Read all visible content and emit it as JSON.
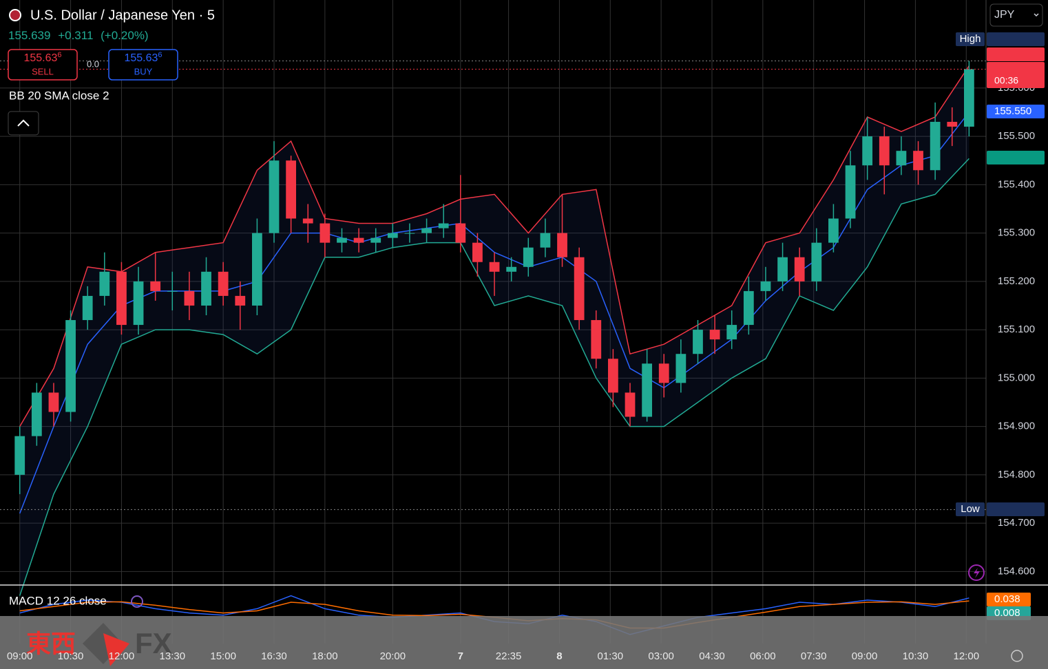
{
  "header": {
    "title": "U.S. Dollar / Japanese Yen · 5",
    "quote": "155.639",
    "change": "+0.311",
    "change_pct": "(+0.20%)",
    "sell_price": "155.63",
    "sell_sup": "6",
    "sell_label": "SELL",
    "spread": "0.0",
    "buy_price": "155.63",
    "buy_sup": "6",
    "buy_label": "BUY",
    "indicator": "BB 20 SMA close 2",
    "currency": "JPY",
    "watermark": [
      "東西",
      "FX"
    ]
  },
  "chart_data": {
    "type": "candlestick",
    "up_color": "#22ab94",
    "down_color": "#f23645",
    "grid": true,
    "x": [
      0,
      6,
      12,
      18,
      24,
      30,
      36,
      42,
      48,
      54,
      60,
      66,
      72,
      78,
      84,
      90,
      96,
      102,
      108,
      114,
      120,
      126,
      132,
      138,
      144,
      150,
      156,
      162,
      168,
      174,
      180,
      186,
      192,
      198,
      204,
      210,
      216,
      222,
      228,
      234,
      240,
      246,
      252,
      258,
      264,
      270,
      276,
      282,
      288,
      294,
      300,
      306,
      312,
      318,
      324,
      330,
      336
    ],
    "open": [
      154.8,
      154.88,
      154.97,
      154.93,
      155.12,
      155.17,
      155.22,
      155.11,
      155.2,
      155.18,
      155.18,
      155.15,
      155.22,
      155.17,
      155.15,
      155.3,
      155.45,
      155.33,
      155.32,
      155.28,
      155.29,
      155.28,
      155.29,
      155.3,
      155.3,
      155.31,
      155.32,
      155.28,
      155.24,
      155.22,
      155.23,
      155.27,
      155.3,
      155.25,
      155.12,
      155.04,
      154.97,
      154.92,
      155.03,
      154.99,
      155.05,
      155.1,
      155.08,
      155.11,
      155.18,
      155.2,
      155.25,
      155.2,
      155.28,
      155.33,
      155.44,
      155.5,
      155.44,
      155.47,
      155.43,
      155.53,
      155.52
    ],
    "high": [
      154.9,
      154.99,
      154.99,
      155.14,
      155.19,
      155.26,
      155.24,
      155.23,
      155.26,
      155.22,
      155.22,
      155.25,
      155.24,
      155.2,
      155.33,
      155.49,
      155.46,
      155.36,
      155.34,
      155.31,
      155.31,
      155.31,
      155.32,
      155.32,
      155.33,
      155.36,
      155.42,
      155.3,
      155.26,
      155.25,
      155.29,
      155.33,
      155.38,
      155.27,
      155.14,
      155.06,
      154.99,
      155.06,
      155.05,
      155.08,
      155.12,
      155.13,
      155.14,
      155.21,
      155.23,
      155.28,
      155.27,
      155.31,
      155.36,
      155.47,
      155.54,
      155.52,
      155.5,
      155.49,
      155.57,
      155.56,
      155.656
    ],
    "low": [
      154.76,
      154.86,
      154.9,
      154.91,
      155.1,
      155.15,
      155.09,
      155.09,
      155.16,
      155.14,
      155.12,
      155.13,
      155.15,
      155.1,
      155.13,
      155.28,
      155.3,
      155.28,
      155.25,
      155.26,
      155.26,
      155.26,
      155.27,
      155.28,
      155.28,
      155.29,
      155.26,
      155.21,
      155.17,
      155.2,
      155.21,
      155.25,
      155.23,
      155.1,
      155.02,
      154.94,
      154.9,
      154.91,
      154.96,
      154.97,
      155.03,
      155.05,
      155.06,
      155.09,
      155.16,
      155.18,
      155.17,
      155.18,
      155.26,
      155.31,
      155.41,
      155.38,
      155.42,
      155.4,
      155.41,
      155.48,
      155.5
    ],
    "close": [
      154.88,
      154.97,
      154.93,
      155.12,
      155.17,
      155.22,
      155.11,
      155.2,
      155.18,
      155.18,
      155.15,
      155.22,
      155.17,
      155.15,
      155.3,
      155.45,
      155.33,
      155.32,
      155.28,
      155.29,
      155.28,
      155.29,
      155.3,
      155.3,
      155.31,
      155.32,
      155.28,
      155.24,
      155.22,
      155.23,
      155.27,
      155.3,
      155.25,
      155.12,
      155.04,
      154.97,
      154.92,
      155.03,
      154.99,
      155.05,
      155.1,
      155.08,
      155.11,
      155.18,
      155.2,
      155.25,
      155.2,
      155.28,
      155.33,
      155.44,
      155.5,
      155.44,
      155.47,
      155.43,
      155.53,
      155.52,
      155.639
    ],
    "xlim": [
      -7,
      342
    ],
    "xticks": [
      {
        "value": 0,
        "label": "09:00"
      },
      {
        "value": 18,
        "label": "10:30"
      },
      {
        "value": 36,
        "label": "12:00"
      },
      {
        "value": 54,
        "label": "13:30"
      },
      {
        "value": 72,
        "label": "15:00"
      },
      {
        "value": 90,
        "label": "16:30"
      },
      {
        "value": 108,
        "label": "18:00"
      },
      {
        "value": 132,
        "label": "20:00"
      },
      {
        "value": 156,
        "label": "7"
      },
      {
        "value": 173,
        "label": "22:35"
      },
      {
        "value": 191,
        "label": "8"
      },
      {
        "value": 209,
        "label": "01:30"
      },
      {
        "value": 227,
        "label": "03:00"
      },
      {
        "value": 245,
        "label": "04:30"
      },
      {
        "value": 263,
        "label": "06:00"
      },
      {
        "value": 281,
        "label": "07:30"
      },
      {
        "value": 299,
        "label": "09:00"
      },
      {
        "value": 317,
        "label": "10:30"
      },
      {
        "value": 335,
        "label": "12:00"
      }
    ],
    "ylim": [
      154.572,
      155.782
    ],
    "yticks": [
      {
        "value": 154.6,
        "label": "154.600"
      },
      {
        "value": 154.7,
        "label": "154.700"
      },
      {
        "value": 154.8,
        "label": "154.800"
      },
      {
        "value": 154.9,
        "label": "154.900"
      },
      {
        "value": 155.0,
        "label": "155.000"
      },
      {
        "value": 155.1,
        "label": "155.100"
      },
      {
        "value": 155.2,
        "label": "155.200"
      },
      {
        "value": 155.3,
        "label": "155.300"
      },
      {
        "value": 155.4,
        "label": "155.400"
      },
      {
        "value": 155.5,
        "label": "155.500"
      },
      {
        "value": 155.6,
        "label": "155.600"
      }
    ],
    "bands": {
      "x": [
        0,
        12,
        24,
        36,
        48,
        60,
        72,
        84,
        96,
        108,
        120,
        132,
        144,
        156,
        168,
        180,
        192,
        204,
        216,
        228,
        240,
        252,
        264,
        276,
        288,
        300,
        312,
        324,
        336
      ],
      "upper": [
        154.9,
        155.02,
        155.23,
        155.22,
        155.26,
        155.27,
        155.28,
        155.43,
        155.49,
        155.33,
        155.32,
        155.32,
        155.34,
        155.37,
        155.38,
        155.3,
        155.38,
        155.39,
        155.05,
        155.07,
        155.11,
        155.15,
        155.28,
        155.3,
        155.41,
        155.54,
        155.51,
        155.54,
        155.646
      ],
      "middle": [
        154.72,
        154.9,
        155.07,
        155.15,
        155.18,
        155.18,
        155.18,
        155.2,
        155.3,
        155.3,
        155.28,
        155.3,
        155.31,
        155.32,
        155.26,
        155.23,
        155.25,
        155.2,
        155.02,
        154.98,
        155.03,
        155.08,
        155.16,
        155.22,
        155.27,
        155.39,
        155.44,
        155.46,
        155.55
      ],
      "lower": [
        154.55,
        154.76,
        154.9,
        155.07,
        155.1,
        155.1,
        155.09,
        155.05,
        155.1,
        155.25,
        155.25,
        155.27,
        155.28,
        155.28,
        155.15,
        155.17,
        155.15,
        155.0,
        154.9,
        154.9,
        154.95,
        155.0,
        155.04,
        155.17,
        155.14,
        155.23,
        155.36,
        155.38,
        155.454
      ],
      "upper_color": "#f23645",
      "middle_color": "#2962ff",
      "lower_color": "#22ab94"
    },
    "price_tags": [
      {
        "value": 155.656,
        "name": "High",
        "color": "#1c2f5a"
      },
      {
        "value": 155.646,
        "color": "#f23645"
      },
      {
        "value": 155.639,
        "color": "#f23645",
        "countdown": "00:36"
      },
      {
        "value": 155.55,
        "label": "155.550",
        "color": "#2962ff"
      },
      {
        "value": 155.454,
        "color": "#089981"
      },
      {
        "value": 154.728,
        "name": "Low",
        "color": "#1c2f5a"
      }
    ],
    "macd": {
      "title": "MACD 12 26 close",
      "ylim": [
        -0.045,
        0.075
      ],
      "macd": [
        0.01,
        0.03,
        0.04,
        0.035,
        0.02,
        0.01,
        0.005,
        0.02,
        0.05,
        0.02,
        0.005,
        0.0,
        0.005,
        0.01,
        -0.01,
        -0.015,
        0.005,
        -0.01,
        -0.04,
        -0.02,
        0.0,
        0.01,
        0.02,
        0.035,
        0.03,
        0.04,
        0.035,
        0.025,
        0.045
      ],
      "signal": [
        0.015,
        0.025,
        0.035,
        0.036,
        0.028,
        0.018,
        0.01,
        0.015,
        0.035,
        0.03,
        0.015,
        0.005,
        0.004,
        0.007,
        0.0,
        -0.008,
        -0.003,
        -0.006,
        -0.025,
        -0.025,
        -0.012,
        0.0,
        0.012,
        0.025,
        0.03,
        0.035,
        0.036,
        0.03,
        0.038
      ],
      "macd_color": "#2962ff",
      "signal_color": "#ff6d00",
      "tags": [
        {
          "value": 0.038,
          "color": "#ff6d00"
        },
        {
          "value": 0.008,
          "color": "#26a69a"
        }
      ]
    }
  }
}
